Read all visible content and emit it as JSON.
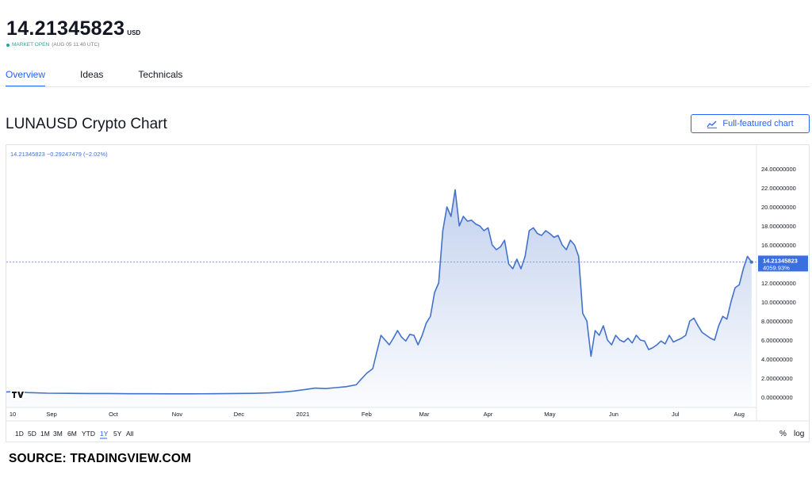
{
  "header": {
    "price": "14.21345823",
    "currency": "USD",
    "market_status": "MARKET OPEN",
    "market_time": "(AUG 05 11:40 UTC)"
  },
  "tabs": [
    {
      "label": "Overview",
      "active": true
    },
    {
      "label": "Ideas",
      "active": false
    },
    {
      "label": "Technicals",
      "active": false
    }
  ],
  "chart_section": {
    "title": "LUNAUSD Crypto Chart",
    "full_featured_label": "Full-featured chart",
    "legend": "14.21345823  −0.29247479 (−2.02%)",
    "last_price_label": "14.21345823",
    "last_change_label": "4059.93%",
    "ranges": [
      "1D",
      "5D",
      "1M",
      "3M",
      "6M",
      "YTD",
      "1Y",
      "5Y",
      "All"
    ],
    "active_range": "1Y",
    "percent_label": "%",
    "log_label": "log"
  },
  "colors": {
    "line": "#4472ca",
    "accent": "#2962ff",
    "price_label_bg": "#3b6fe0"
  },
  "chart_data": {
    "type": "area",
    "title": "LUNAUSD Crypto Chart",
    "x_ticks": [
      "10",
      "Sep",
      "Oct",
      "Nov",
      "Dec",
      "2021",
      "Feb",
      "Mar",
      "Apr",
      "May",
      "Jun",
      "Jul",
      "Aug"
    ],
    "x_tick_days": [
      0,
      22,
      52,
      83,
      113,
      144,
      175,
      203,
      234,
      264,
      295,
      325,
      356
    ],
    "y_ticks": [
      "0.00000000",
      "2.00000000",
      "4.00000000",
      "6.00000000",
      "8.00000000",
      "10.00000000",
      "12.00000000",
      "14.00000000",
      "16.00000000",
      "18.00000000",
      "20.00000000",
      "22.00000000",
      "24.00000000"
    ],
    "ylim": [
      -1,
      25
    ],
    "xlim": [
      0,
      364
    ],
    "series": [
      {
        "x": [
          0,
          5,
          10,
          20,
          30,
          40,
          50,
          60,
          70,
          80,
          90,
          100,
          110,
          120,
          128,
          135,
          140,
          145,
          150,
          155,
          160,
          165,
          170,
          172,
          175,
          178,
          180,
          182,
          184,
          186,
          188,
          190,
          192,
          194,
          196,
          198,
          200,
          202,
          204,
          206,
          208,
          210,
          212,
          214,
          216,
          218,
          220,
          222,
          224,
          226,
          228,
          230,
          232,
          234,
          236,
          238,
          240,
          242,
          244,
          246,
          248,
          250,
          252,
          254,
          256,
          258,
          260,
          262,
          264,
          266,
          268,
          270,
          272,
          274,
          276,
          278,
          280,
          282,
          284,
          286,
          288,
          290,
          292,
          294,
          296,
          298,
          300,
          302,
          304,
          306,
          308,
          310,
          312,
          314,
          316,
          318,
          320,
          322,
          324,
          326,
          328,
          330,
          332,
          334,
          336,
          338,
          340,
          342,
          344,
          346,
          348,
          350,
          352,
          354,
          356,
          358,
          360,
          362
        ],
        "y": [
          0.55,
          0.58,
          0.48,
          0.42,
          0.4,
          0.38,
          0.38,
          0.36,
          0.36,
          0.35,
          0.35,
          0.36,
          0.38,
          0.4,
          0.45,
          0.55,
          0.65,
          0.8,
          0.95,
          0.9,
          1.0,
          1.1,
          1.3,
          1.8,
          2.5,
          3.0,
          4.8,
          6.5,
          6.0,
          5.5,
          6.2,
          7.0,
          6.3,
          5.9,
          6.6,
          6.5,
          5.5,
          6.5,
          7.8,
          8.5,
          11.0,
          12.0,
          17.5,
          20.0,
          19.0,
          21.8,
          18.0,
          19.0,
          18.5,
          18.6,
          18.2,
          18.0,
          17.5,
          17.8,
          16.0,
          15.5,
          15.8,
          16.5,
          14.0,
          13.5,
          14.5,
          13.5,
          14.8,
          17.5,
          17.8,
          17.2,
          17.0,
          17.5,
          17.2,
          16.8,
          17.0,
          16.0,
          15.5,
          16.5,
          16.0,
          14.8,
          8.8,
          8.0,
          4.3,
          7.0,
          6.5,
          7.5,
          6.0,
          5.5,
          6.5,
          6.0,
          5.8,
          6.2,
          5.7,
          6.5,
          6.0,
          5.9,
          5.0,
          5.2,
          5.5,
          5.9,
          5.6,
          6.5,
          5.8,
          6.0,
          6.2,
          6.5,
          8.0,
          8.3,
          7.5,
          6.8,
          6.5,
          6.2,
          6.0,
          7.5,
          8.5,
          8.2,
          10.0,
          11.5,
          11.8,
          13.5,
          14.8,
          14.2
        ]
      }
    ],
    "last_value": 14.21345823,
    "grid": false
  }
}
